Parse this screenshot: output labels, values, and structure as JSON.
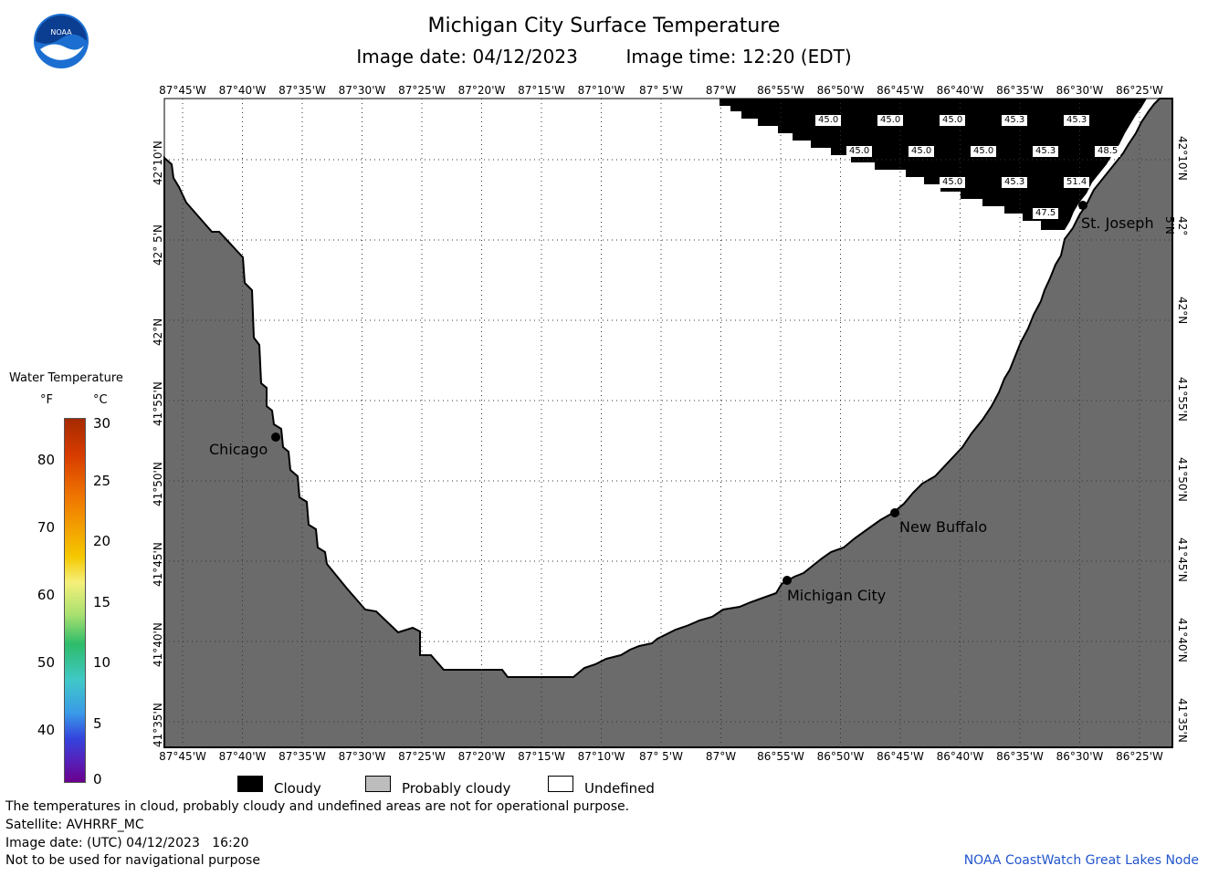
{
  "header": {
    "title": "Michigan City Surface Temperature",
    "image_date": "Image date: 04/12/2023",
    "image_time": "Image time: 12:20 (EDT)",
    "logo_text": "NOAA"
  },
  "map": {
    "lon_labels": [
      "87°45'W",
      "87°40'W",
      "87°35'W",
      "87°30'W",
      "87°25'W",
      "87°20'W",
      "87°15'W",
      "87°10'W",
      "87° 5'W",
      "87°W",
      "86°55'W",
      "86°50'W",
      "86°45'W",
      "86°40'W",
      "86°35'W",
      "86°30'W",
      "86°25'W"
    ],
    "lat_labels": [
      "42°10'N",
      "42° 5'N",
      "42°N",
      "41°55'N",
      "41°50'N",
      "41°45'N",
      "41°40'N",
      "41°35'N"
    ],
    "land_color": "#6b6b6b",
    "water_color": "#ffffff",
    "cloud_color": "#000000",
    "temperature_labels": [
      "45.0",
      "45.0",
      "45.0",
      "45.3",
      "45.3",
      "45.0",
      "45.0",
      "45.0",
      "45.3",
      "48.5",
      "45.0",
      "45.3",
      "51.4",
      "47.5"
    ],
    "cities": [
      "Chicago",
      "Michigan City",
      "New Buffalo",
      "St. Joseph"
    ]
  },
  "legend": {
    "title": "Water Temperature",
    "unit_f": "°F",
    "unit_c": "°C",
    "f_ticks": [
      "80",
      "70",
      "60",
      "50",
      "40"
    ],
    "c_ticks": [
      "30",
      "25",
      "20",
      "15",
      "10",
      "5",
      "0"
    ],
    "categories": [
      {
        "label": "Cloudy",
        "color": "#000000"
      },
      {
        "label": "Probably cloudy",
        "color": "#bdbdbd"
      },
      {
        "label": "Undefined",
        "color": "#ffffff"
      }
    ]
  },
  "footer": {
    "disclaimer": "The temperatures in cloud, probably cloudy and undefined areas are not for operational purpose.",
    "satellite": "Satellite: AVHRRF_MC",
    "utc_date": "Image date: (UTC) 04/12/2023   16:20",
    "nav_warning": "Not to be used for navigational purpose",
    "credit": "NOAA CoastWatch Great Lakes Node"
  }
}
